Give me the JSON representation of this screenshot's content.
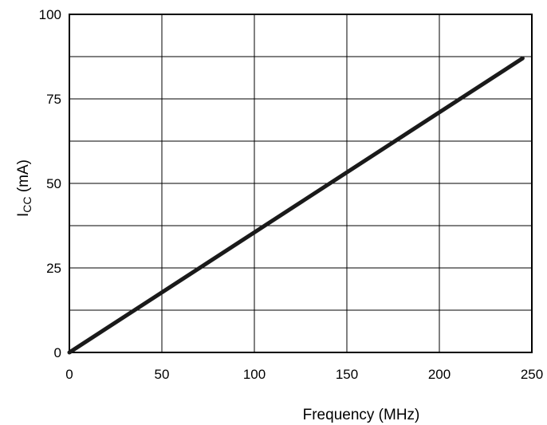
{
  "chart_data": {
    "type": "line",
    "xlabel": "Frequency (MHz)",
    "ylabel": {
      "main": "I",
      "sub": "CC",
      "rest": " (mA)"
    },
    "xlim": [
      0,
      250
    ],
    "ylim": [
      0,
      100
    ],
    "x_ticks": [
      "0",
      "50",
      "100",
      "150",
      "200",
      "250"
    ],
    "y_ticks": [
      "0",
      "25",
      "50",
      "75",
      "100"
    ],
    "x_grid_step": 50,
    "y_grid_step": 12.5,
    "grid": true,
    "legend": "none",
    "series": [
      {
        "x": [
          0,
          245
        ],
        "y": [
          0,
          87
        ],
        "color": "#1a1a1a"
      }
    ]
  }
}
